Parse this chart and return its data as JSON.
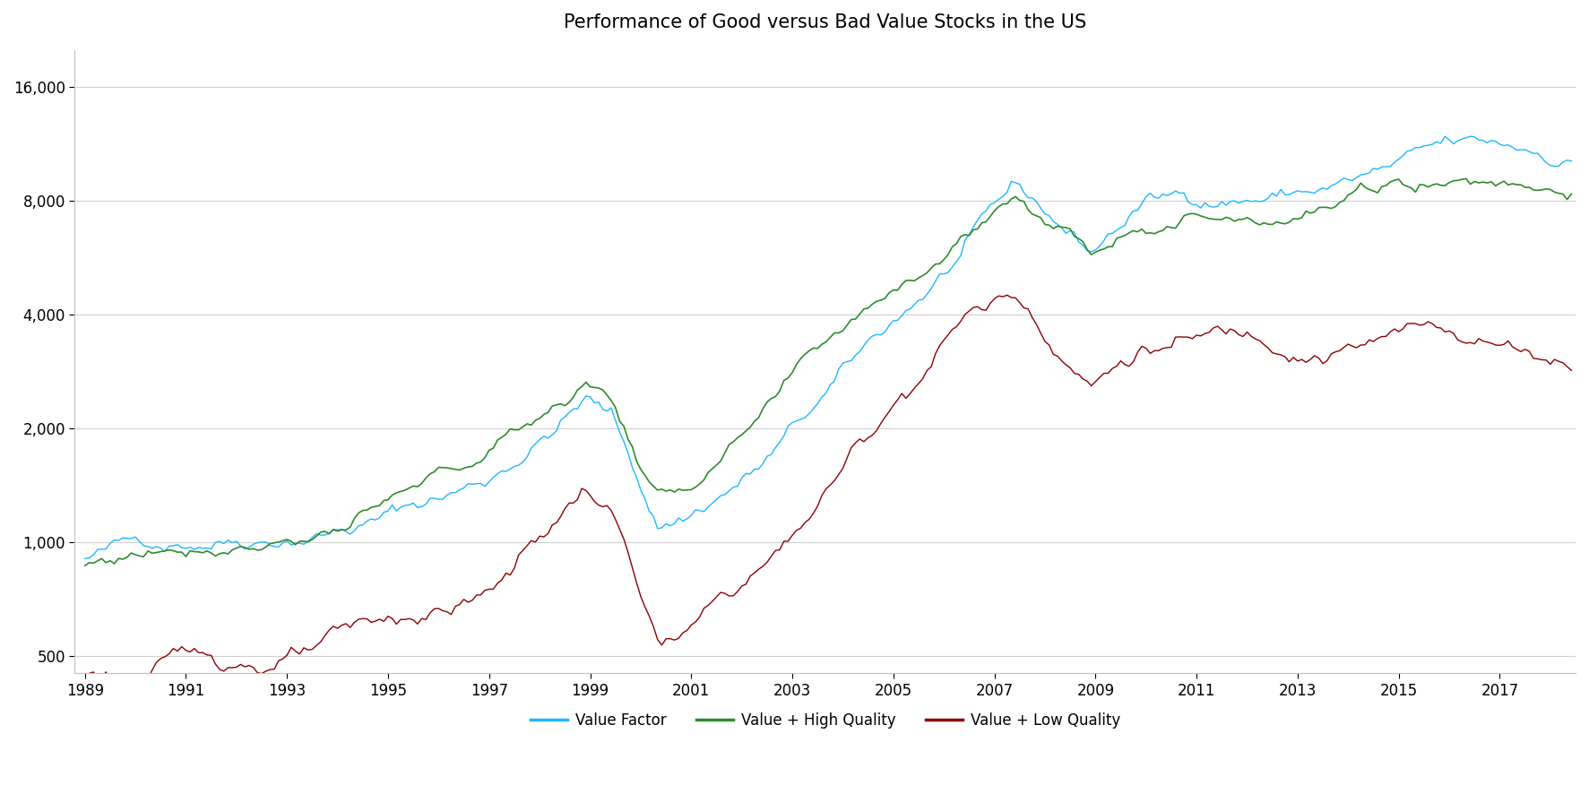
{
  "title": "Performance of Good versus Bad Value Stocks in the US",
  "title_fontsize": 15,
  "background_color": "#ffffff",
  "line_colors": {
    "value_factor": "#1CB8FF",
    "high_quality": "#2E8B2E",
    "low_quality": "#8B0000"
  },
  "legend_labels": [
    "Value Factor",
    "Value + High Quality",
    "Value + Low Quality"
  ],
  "yticks": [
    500,
    1000,
    2000,
    4000,
    8000,
    16000
  ],
  "xticks": [
    1989,
    1991,
    1993,
    1995,
    1997,
    1999,
    2001,
    2003,
    2005,
    2007,
    2009,
    2011,
    2013,
    2015,
    2017
  ],
  "ylim": [
    450,
    20000
  ],
  "xlim": [
    1988.8,
    2018.5
  ]
}
